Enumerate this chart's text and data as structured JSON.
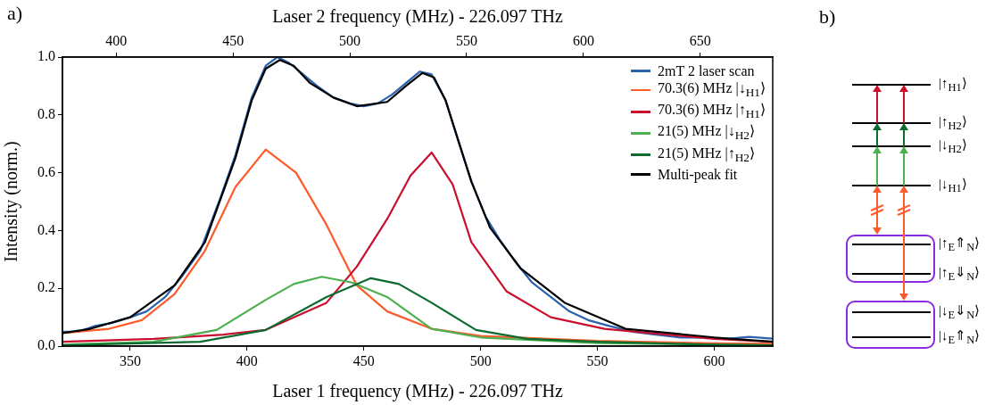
{
  "chart_data": [
    {
      "type": "line",
      "annotations": [
        "a)"
      ],
      "xlabel": "Laser 1 frequency (MHz) - 226.097 THz",
      "x2label": "Laser 2 frequency (MHz) - 226.097 THz",
      "ylabel": "Intensity (norm.)",
      "xlim": [
        321,
        625
      ],
      "xticks": [
        350,
        400,
        450,
        500,
        550,
        600
      ],
      "x2lim": [
        377,
        681
      ],
      "x2ticks": [
        400,
        450,
        500,
        550,
        600,
        650
      ],
      "ylim": [
        0,
        1
      ],
      "yticks": [
        {
          "value": 0,
          "label": "0.0"
        },
        0.2,
        0.4,
        0.6,
        0.8,
        {
          "value": 1,
          "label": "1.0"
        }
      ],
      "legend": "top right",
      "marker": "none",
      "series": [
        {
          "name": "2mT 2 laser scan",
          "color": "#2a62ad",
          "x": [
            321,
            328,
            335,
            342,
            350,
            357,
            365,
            372,
            380,
            388,
            395,
            402,
            408,
            413,
            418,
            424,
            430,
            437,
            444,
            450,
            456,
            462,
            468,
            474,
            479,
            485,
            490,
            496,
            502,
            508,
            515,
            522,
            530,
            538,
            546,
            555,
            565,
            575,
            585,
            595,
            605,
            615,
            625
          ],
          "values": [
            0.05,
            0.05,
            0.07,
            0.08,
            0.1,
            0.12,
            0.17,
            0.24,
            0.33,
            0.5,
            0.66,
            0.86,
            0.97,
            1.0,
            0.98,
            0.94,
            0.9,
            0.86,
            0.84,
            0.83,
            0.84,
            0.87,
            0.91,
            0.95,
            0.94,
            0.85,
            0.72,
            0.57,
            0.45,
            0.37,
            0.29,
            0.22,
            0.17,
            0.12,
            0.09,
            0.07,
            0.05,
            0.04,
            0.03,
            0.03,
            0.025,
            0.032,
            0.026
          ]
        },
        {
          "name": "70.3(6) MHz |↓$_{H1}$⟩",
          "color": "#ff5a2a",
          "x": [
            321,
            341,
            355,
            369,
            382,
            395,
            408,
            421,
            434,
            447,
            460,
            479,
            500,
            550,
            600,
            625
          ],
          "values": [
            0.045,
            0.06,
            0.09,
            0.18,
            0.33,
            0.55,
            0.68,
            0.6,
            0.42,
            0.21,
            0.12,
            0.06,
            0.035,
            0.018,
            0.01,
            0.008
          ]
        },
        {
          "name": "70.3(6) MHz |↑$_{H1}$⟩",
          "color": "#c8102e",
          "x": [
            321,
            360,
            390,
            408,
            434,
            447,
            460,
            470,
            479,
            488,
            496,
            511,
            530,
            553,
            600,
            625
          ],
          "values": [
            0.015,
            0.025,
            0.04,
            0.056,
            0.15,
            0.275,
            0.44,
            0.59,
            0.67,
            0.56,
            0.36,
            0.19,
            0.1,
            0.06,
            0.025,
            0.015
          ]
        },
        {
          "name": "21(5) MHz |↓$_{H2}$⟩",
          "color": "#4caf50",
          "x": [
            321,
            360,
            387,
            408,
            420,
            432,
            445,
            460,
            479,
            500,
            550,
            600,
            625
          ],
          "values": [
            0.005,
            0.015,
            0.056,
            0.16,
            0.215,
            0.24,
            0.22,
            0.17,
            0.06,
            0.03,
            0.01,
            0.005,
            0.003
          ]
        },
        {
          "name": "21(5) MHz |↑$_{H2}$⟩",
          "color": "#0a6b2e",
          "x": [
            321,
            380,
            408,
            434,
            453,
            465,
            479,
            498,
            520,
            550,
            600,
            625
          ],
          "values": [
            0.003,
            0.015,
            0.056,
            0.17,
            0.235,
            0.215,
            0.15,
            0.056,
            0.025,
            0.015,
            0.005,
            0.003
          ]
        },
        {
          "name": "Multi-peak fit",
          "color": "#000000",
          "x": [
            321,
            333,
            350,
            369,
            382,
            395,
            402,
            408,
            414,
            420,
            427,
            437,
            447,
            460,
            468,
            475,
            480,
            485,
            496,
            504,
            517,
            536,
            562,
            600,
            625
          ],
          "values": [
            0.045,
            0.06,
            0.1,
            0.21,
            0.36,
            0.65,
            0.85,
            0.96,
            0.99,
            0.97,
            0.91,
            0.86,
            0.83,
            0.845,
            0.9,
            0.945,
            0.93,
            0.85,
            0.57,
            0.41,
            0.27,
            0.15,
            0.06,
            0.03,
            0.015
          ]
        }
      ]
    },
    {
      "type": "other",
      "title": "b)",
      "annotations": [
        "|↑$_{H1}$⟩",
        "|↑$_{H2}$⟩",
        "|↓$_{H2}$⟩",
        "|↓$_{H1}$⟩",
        "|↑$_{E}$⇑$_{N}$⟩",
        "|↑$_{E}$⇓$_{N}$⟩",
        "|↓$_{E}$⇓$_{N}$⟩",
        "|↓$_{E}$⇑$_{N}$⟩"
      ]
    }
  ]
}
